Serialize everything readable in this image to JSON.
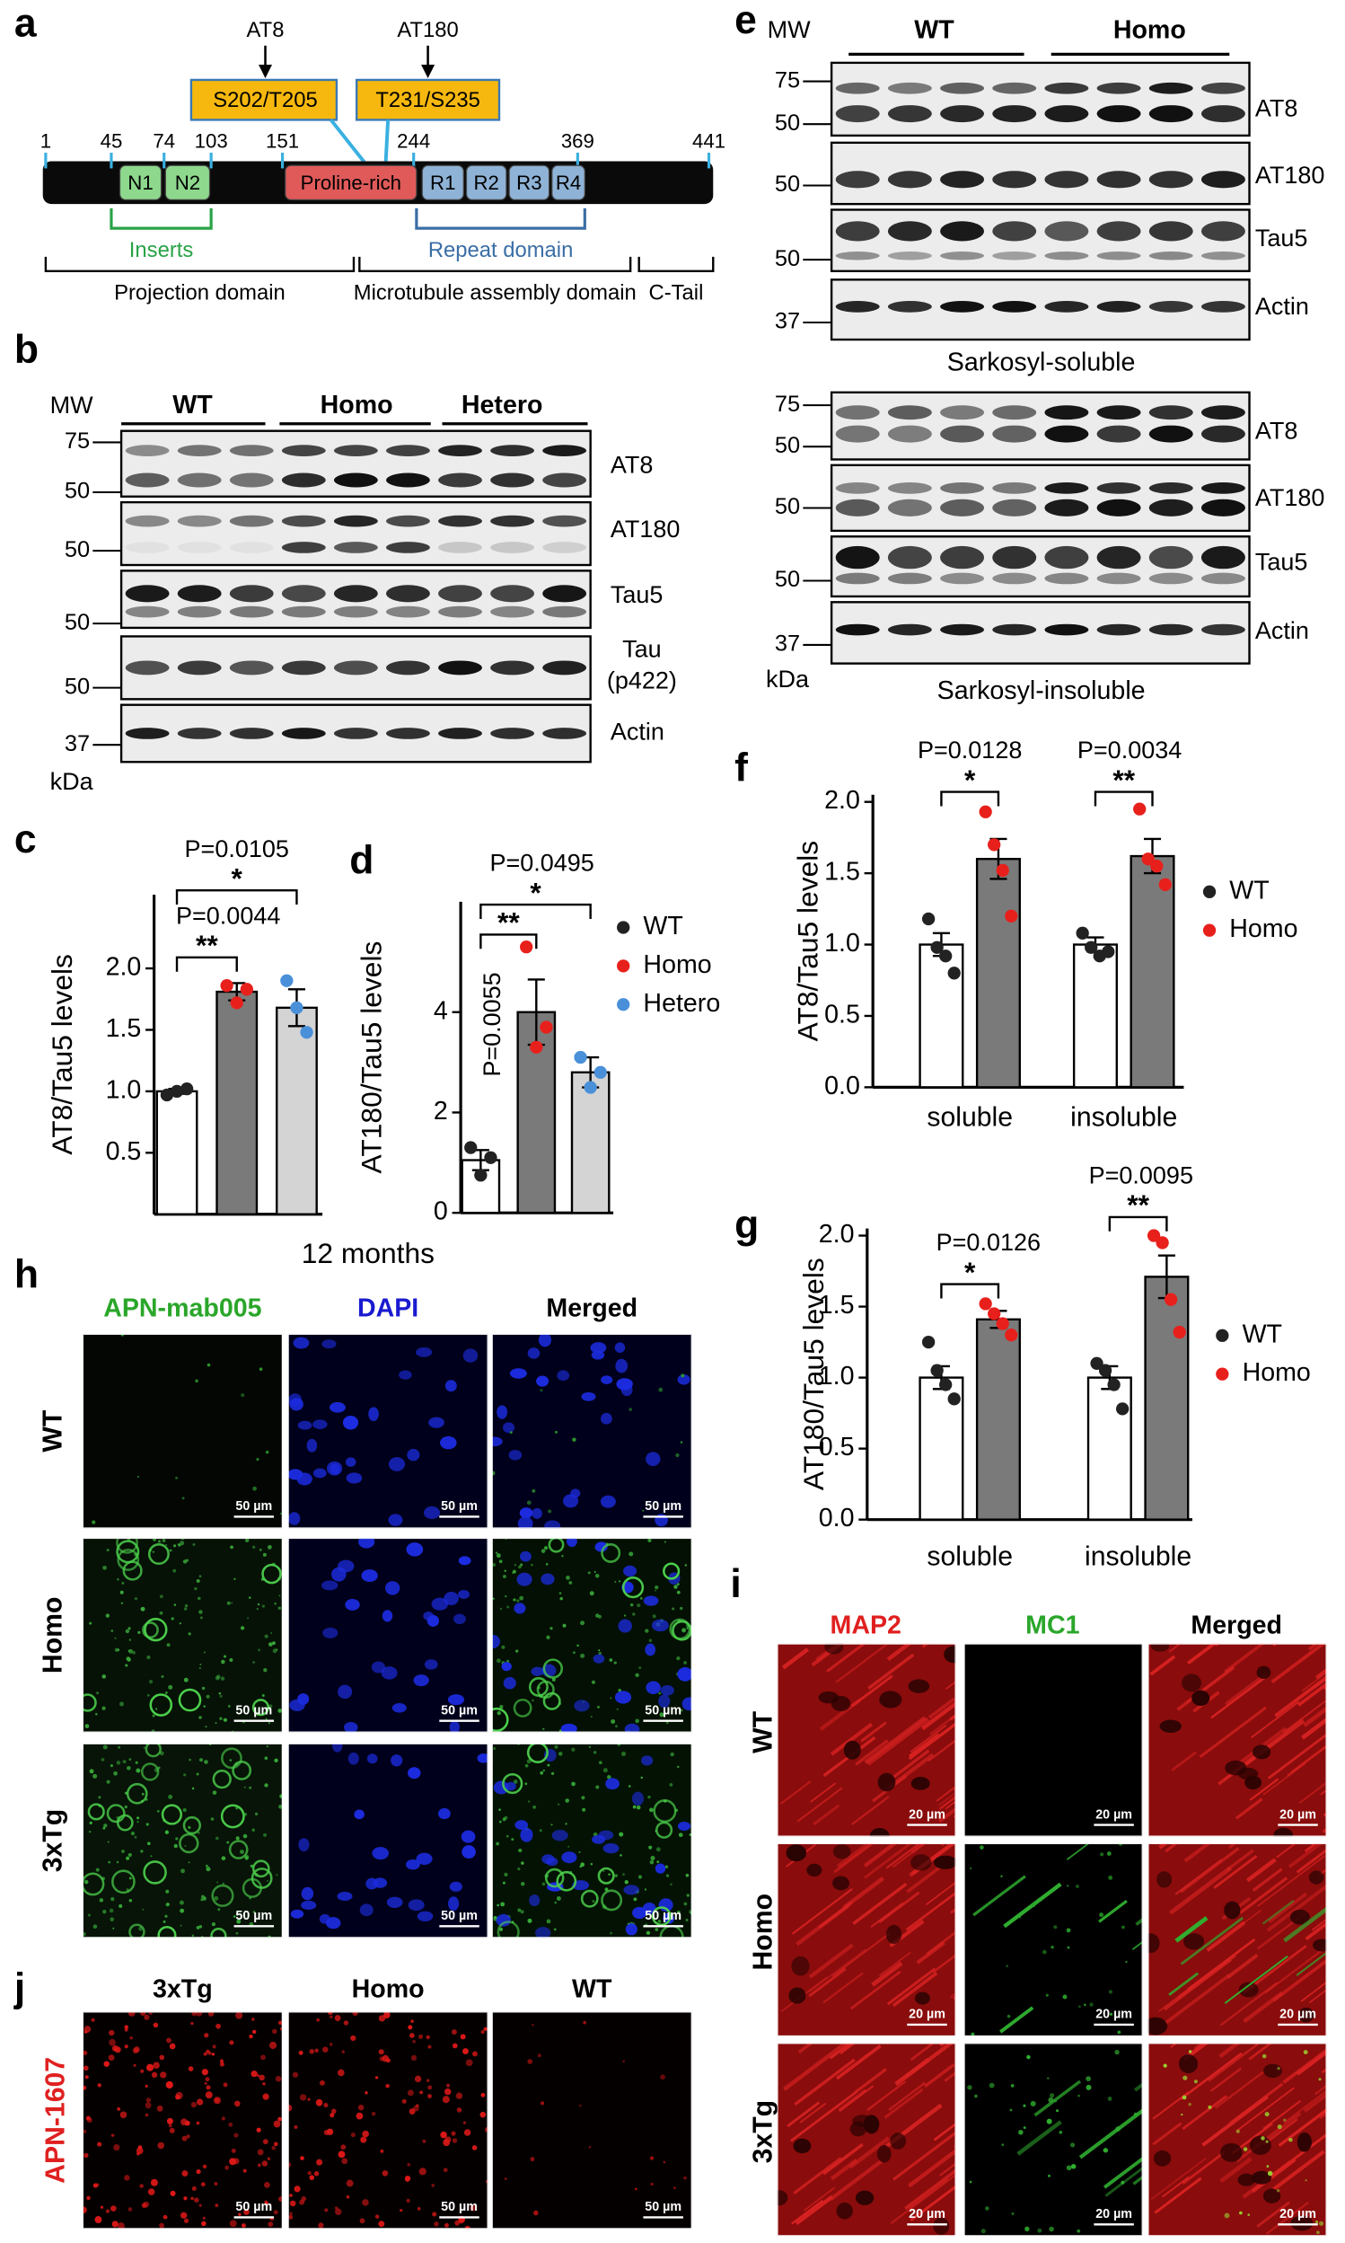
{
  "panel_a": {
    "label": "a",
    "epitopes": [
      {
        "antibody": "AT8",
        "site": "S202/T205"
      },
      {
        "antibody": "AT180",
        "site": "T231/S235"
      }
    ],
    "positions": [
      1,
      45,
      74,
      103,
      151,
      244,
      369,
      441
    ],
    "segments": [
      "N1",
      "N2",
      "Proline-rich",
      "R1",
      "R2",
      "R3",
      "R4"
    ],
    "regions": [
      "Inserts",
      "Repeat domain"
    ],
    "domains": [
      "Projection domain",
      "Microtubule assembly domain",
      "C-Tail"
    ]
  },
  "panel_b": {
    "label": "b",
    "mw": "MW",
    "unit": "kDa",
    "groups": [
      "WT",
      "Homo",
      "Hetero"
    ],
    "blots": [
      {
        "antibody": "AT8",
        "markers": [
          75,
          50
        ]
      },
      {
        "antibody": "AT180",
        "markers": [
          50
        ]
      },
      {
        "antibody": "Tau5",
        "markers": [
          50
        ]
      },
      {
        "antibody": "Tau",
        "detail": "(p422)",
        "markers": [
          50
        ]
      },
      {
        "antibody": "Actin",
        "markers": [
          37
        ]
      }
    ]
  },
  "panel_e": {
    "label": "e",
    "mw": "MW",
    "unit": "kDa",
    "groups": [
      "WT",
      "Homo"
    ],
    "fractions": [
      {
        "name": "Sarkosyl-soluble",
        "blots": [
          {
            "antibody": "AT8",
            "markers": [
              75,
              50
            ]
          },
          {
            "antibody": "AT180",
            "markers": [
              50
            ]
          },
          {
            "antibody": "Tau5",
            "markers": [
              50
            ]
          },
          {
            "antibody": "Actin",
            "markers": [
              37
            ]
          }
        ]
      },
      {
        "name": "Sarkosyl-insoluble",
        "blots": [
          {
            "antibody": "AT8",
            "markers": [
              75,
              50
            ]
          },
          {
            "antibody": "AT180",
            "markers": [
              50
            ]
          },
          {
            "antibody": "Tau5",
            "markers": [
              50
            ]
          },
          {
            "antibody": "Actin",
            "markers": [
              37
            ]
          }
        ]
      }
    ]
  },
  "chart_data": [
    {
      "type": "bar",
      "label": "c",
      "ylabel": "AT8/Tau5 levels",
      "caption": "12 months",
      "categories": [
        null,
        null,
        null
      ],
      "values": [
        1.0,
        1.81,
        1.68
      ],
      "errors": [
        0.02,
        0.07,
        0.15
      ],
      "colors": [
        "#ffffff",
        "#7a7a7a",
        "#d4d4d4"
      ],
      "points": [
        [
          0.97,
          1.0,
          1.02
        ],
        [
          1.86,
          1.72,
          1.83
        ],
        [
          1.9,
          1.68,
          1.48
        ]
      ],
      "point_colors": [
        "#222222",
        "#e8201c",
        "#4a90d9"
      ],
      "ylim": [
        0,
        2.6
      ],
      "yticks": [
        0.5,
        {
          "value": 1,
          "label": "1.0"
        },
        1.5,
        {
          "value": 2,
          "label": "2.0"
        }
      ],
      "annotations": [
        {
          "text": "P=0.0105",
          "stars": "*"
        },
        {
          "text": "P=0.0044",
          "stars": "**"
        }
      ]
    },
    {
      "type": "bar",
      "label": "d",
      "ylabel": "AT180/Tau5 levels",
      "categories": [
        null,
        null,
        null
      ],
      "values": [
        1.05,
        4.0,
        2.8
      ],
      "errors": [
        0.2,
        0.65,
        0.3
      ],
      "colors": [
        "#ffffff",
        "#7a7a7a",
        "#d4d4d4"
      ],
      "points": [
        [
          1.3,
          0.75,
          1.1
        ],
        [
          5.3,
          3.3,
          3.7
        ],
        [
          3.1,
          2.5,
          2.8
        ]
      ],
      "point_colors": [
        "#222222",
        "#e8201c",
        "#4a90d9"
      ],
      "legend": [
        "WT",
        "Homo",
        "Hetero"
      ],
      "ylim": [
        0,
        6.2
      ],
      "yticks": [
        0,
        2,
        4
      ],
      "annotations": [
        {
          "text": "P=0.0495",
          "stars": "*"
        },
        {
          "text": "P=0.0055",
          "stars": "**"
        }
      ]
    },
    {
      "type": "grouped-bar",
      "label": "f",
      "ylabel": "AT8/Tau5 levels",
      "categories": [
        "soluble",
        "insoluble"
      ],
      "series": [
        {
          "name": "WT",
          "color": "#ffffff",
          "point_color": "#222222",
          "values": [
            1.0,
            1.0
          ],
          "errors": [
            0.08,
            0.05
          ],
          "points": [
            [
              1.18,
              0.98,
              0.92,
              0.8
            ],
            [
              1.08,
              0.98,
              0.92,
              0.95
            ]
          ]
        },
        {
          "name": "Homo",
          "color": "#7a7a7a",
          "point_color": "#e8201c",
          "values": [
            1.6,
            1.62
          ],
          "errors": [
            0.14,
            0.12
          ],
          "points": [
            [
              1.93,
              1.7,
              1.52,
              1.2
            ],
            [
              1.95,
              1.6,
              1.55,
              1.42
            ]
          ]
        }
      ],
      "ylim": [
        0,
        2.05
      ],
      "yticks": [
        {
          "value": 0,
          "label": "0.0"
        },
        0.5,
        {
          "value": 1,
          "label": "1.0"
        },
        1.5,
        {
          "value": 2,
          "label": "2.0"
        }
      ],
      "annotations": [
        {
          "text": "P=0.0128",
          "stars": "*"
        },
        {
          "text": "P=0.0034",
          "stars": "**"
        }
      ]
    },
    {
      "type": "grouped-bar",
      "label": "g",
      "ylabel": "AT180/Tau5 levels",
      "categories": [
        "soluble",
        "insoluble"
      ],
      "series": [
        {
          "name": "WT",
          "color": "#ffffff",
          "point_color": "#222222",
          "values": [
            1.0,
            1.0
          ],
          "errors": [
            0.08,
            0.08
          ],
          "points": [
            [
              1.25,
              1.05,
              0.95,
              0.85
            ],
            [
              1.1,
              1.05,
              0.95,
              0.78
            ]
          ]
        },
        {
          "name": "Homo",
          "color": "#7a7a7a",
          "point_color": "#e8201c",
          "values": [
            1.41,
            1.71
          ],
          "errors": [
            0.06,
            0.15
          ],
          "points": [
            [
              1.52,
              1.45,
              1.38,
              1.3
            ],
            [
              2.0,
              1.95,
              1.55,
              1.32
            ]
          ]
        }
      ],
      "ylim": [
        0,
        2.05
      ],
      "yticks": [
        {
          "value": 0,
          "label": "0.0"
        },
        0.5,
        {
          "value": 1,
          "label": "1.0"
        },
        1.5,
        {
          "value": 2,
          "label": "2.0"
        }
      ],
      "annotations": [
        {
          "text": "P=0.0126",
          "stars": "*"
        },
        {
          "text": "P=0.0095",
          "stars": "**"
        }
      ]
    }
  ],
  "panel_h": {
    "label": "h",
    "columns": [
      "APN-mab005",
      "DAPI",
      "Merged"
    ],
    "rows": [
      "WT",
      "Homo",
      "3xTg"
    ],
    "scale_bar": "50 µm"
  },
  "panel_i": {
    "label": "i",
    "columns": [
      "MAP2",
      "MC1",
      "Merged"
    ],
    "rows": [
      "WT",
      "Homo",
      "3xTg"
    ],
    "scale_bar": "20 µm"
  },
  "panel_j": {
    "label": "j",
    "columns": [
      "3xTg",
      "Homo",
      "WT"
    ],
    "rows": [
      "APN-1607"
    ],
    "scale_bar": "50 µm"
  }
}
